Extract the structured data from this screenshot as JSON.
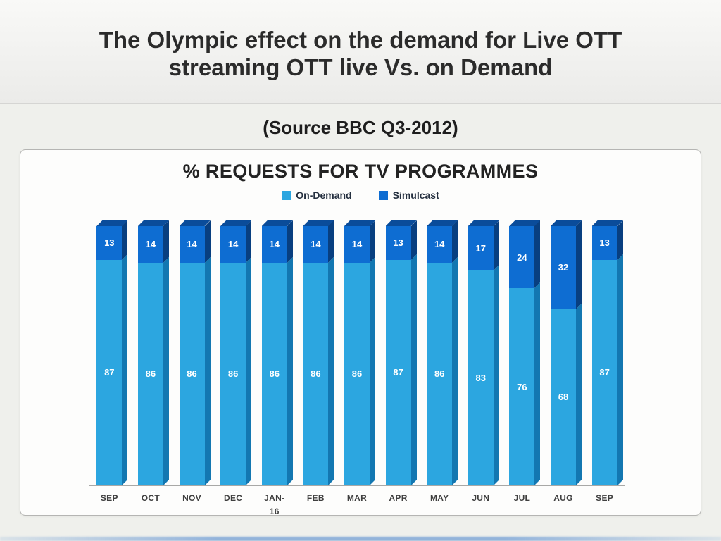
{
  "slide": {
    "title_line1": "The Olympic effect on the demand for Live OTT",
    "title_line2": "streaming OTT live Vs. on Demand",
    "subtitle": "(Source BBC Q3-2012)"
  },
  "chart_data": {
    "type": "bar",
    "stacked": true,
    "title": "% REQUESTS FOR TV PROGRAMMES",
    "categories": [
      "SEP",
      "OCT",
      "NOV",
      "DEC",
      "JAN-16",
      "FEB",
      "MAR",
      "APR",
      "MAY",
      "JUN",
      "JUL",
      "AUG",
      "SEP"
    ],
    "series": [
      {
        "name": "On-Demand",
        "color": "#2CA6E0",
        "values": [
          87,
          86,
          86,
          86,
          86,
          86,
          86,
          87,
          86,
          83,
          76,
          68,
          87
        ]
      },
      {
        "name": "Simulcast",
        "color": "#0E6DD2",
        "values": [
          13,
          14,
          14,
          14,
          14,
          14,
          14,
          13,
          14,
          17,
          24,
          32,
          13
        ]
      }
    ],
    "ylim": [
      0,
      100
    ],
    "legend_position": "top",
    "grid": false,
    "value_labels": true,
    "colors": {
      "on_demand": "#2CA6E0",
      "on_demand_side": "#1377B1",
      "simulcast": "#0E6DD2",
      "simulcast_side": "#083F80",
      "top_face": "#0A4C9A"
    }
  }
}
